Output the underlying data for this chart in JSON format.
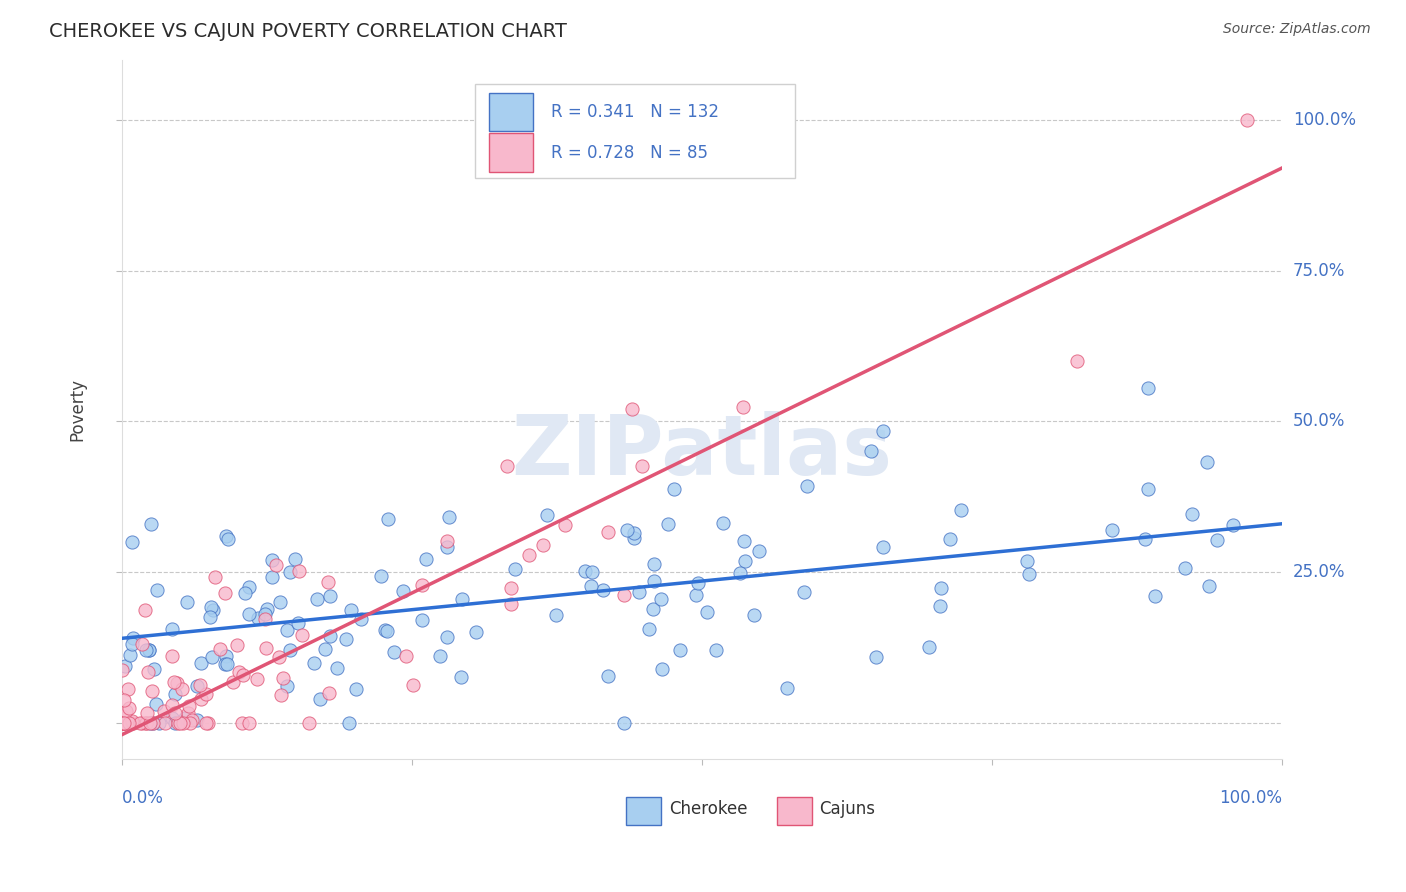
{
  "title": "CHEROKEE VS CAJUN POVERTY CORRELATION CHART",
  "source": "Source: ZipAtlas.com",
  "ylabel": "Poverty",
  "R_cherokee": 0.341,
  "N_cherokee": 132,
  "R_cajun": 0.728,
  "N_cajun": 85,
  "cherokee_fill": "#a8cff0",
  "cherokee_edge": "#4472c4",
  "cajun_fill": "#f8b8cc",
  "cajun_edge": "#e05575",
  "cherokee_line": "#2e6fd4",
  "cajun_line": "#e05575",
  "legend_color": "#4472c4",
  "title_color": "#2c2c2c",
  "source_color": "#555555",
  "axis_label_color": "#4472c4",
  "ylabel_color": "#444444",
  "grid_color": "#c8c8c8",
  "watermark_color": "#e0e8f4",
  "background": "#ffffff",
  "xlim": [
    0.0,
    1.0
  ],
  "ylim": [
    -0.06,
    1.1
  ],
  "cherokee_line_y0": 0.14,
  "cherokee_line_y1": 0.33,
  "cajun_line_y0": -0.02,
  "cajun_line_y1": 0.92
}
